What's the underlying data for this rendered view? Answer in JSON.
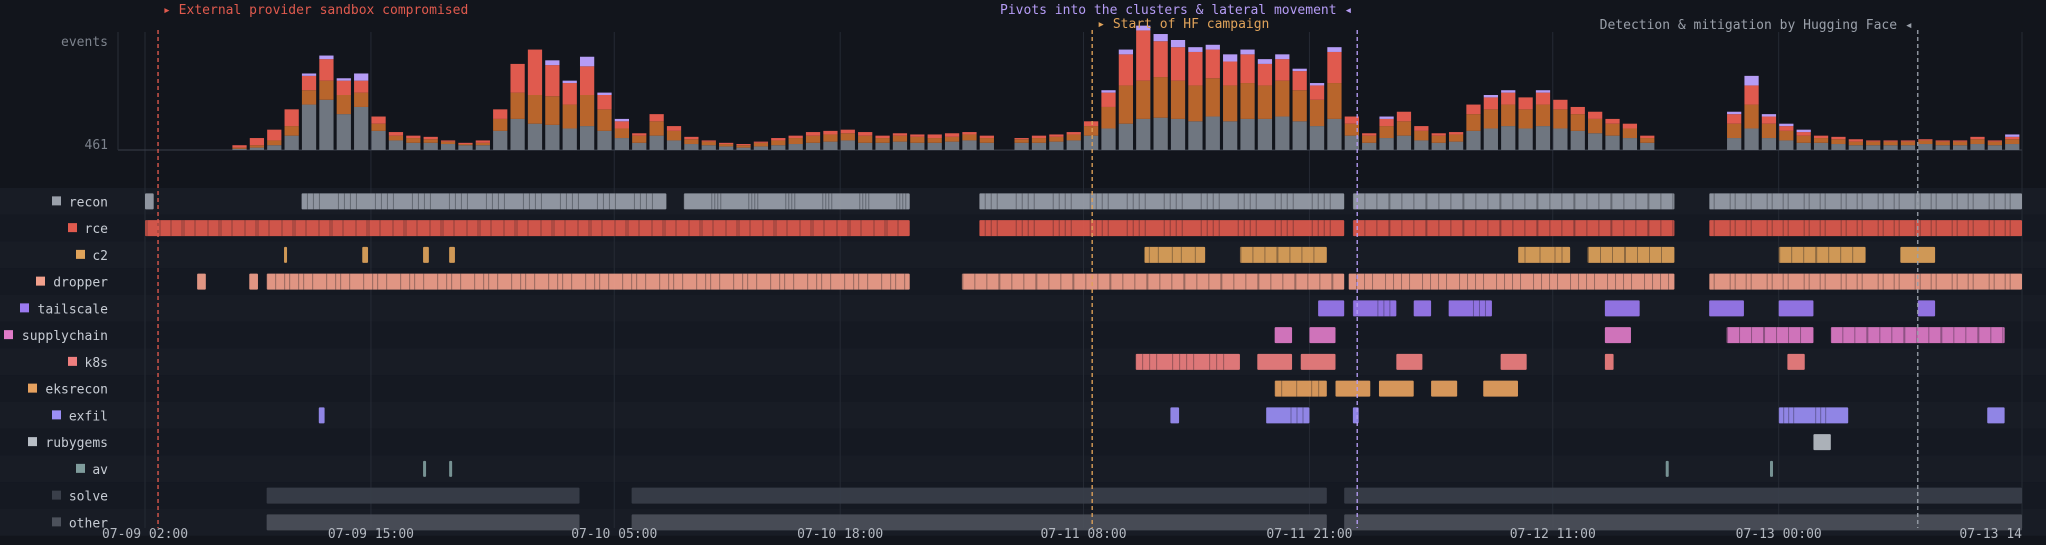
{
  "chart_data": {
    "type": "bar",
    "title": "",
    "xlabel": "",
    "ylabel": "events",
    "y_tick": "461",
    "ylim": [
      0,
      920
    ],
    "x_domain": [
      "2025-07-09 02:00",
      "2025-07-13 14:00"
    ],
    "x_tick_labels": [
      "07-09 02:00",
      "07-09 15:00",
      "07-10 05:00",
      "07-10 18:00",
      "07-11 08:00",
      "07-11 21:00",
      "07-12 11:00",
      "07-13 00:00",
      "07-13 14"
    ],
    "annotations": [
      {
        "name": "provider",
        "label": "▸ External provider sandbox compromised",
        "time": "07-09 02:45",
        "color": "#e05a4e",
        "align": "start"
      },
      {
        "name": "hf-start",
        "label": "▸ Start of HF campaign",
        "time": "07-11 08:30",
        "color": "#e0a35a",
        "align": "start"
      },
      {
        "name": "pivots",
        "label": "Pivots into the clusters & lateral movement ◂",
        "time": "07-11 23:45",
        "color": "#b59cf5",
        "align": "end"
      },
      {
        "name": "detection",
        "label": "Detection & mitigation by Hugging Face ◂",
        "time": "07-13 08:00",
        "color": "#9aa0aa",
        "align": "end"
      }
    ],
    "categories": [
      "recon",
      "rce",
      "c2",
      "dropper",
      "tailscale",
      "supplychain",
      "k8s",
      "eksrecon",
      "exfil",
      "rubygems",
      "av",
      "solve",
      "other"
    ],
    "category_colors": [
      "#9aa0aa",
      "#e05a4e",
      "#e0a35a",
      "#f2a08c",
      "#9b7af0",
      "#e07bc8",
      "#ef7f7f",
      "#e6a15f",
      "#9b8ef5",
      "#b8bec6",
      "#7f9c9c",
      "#3a3f4a",
      "#4c515b"
    ],
    "stack_colors": [
      "#6f7680",
      "#b8652c",
      "#e05a4e",
      "#b59cf5"
    ],
    "histogram": [
      [
        "07-09 02:00",
        0,
        0,
        0,
        0
      ],
      [
        "07-09 03:00",
        0,
        0,
        0,
        0
      ],
      [
        "07-09 04:00",
        0,
        0,
        0,
        0
      ],
      [
        "07-09 05:00",
        0,
        0,
        0,
        0
      ],
      [
        "07-09 06:00",
        0,
        0,
        0,
        0
      ],
      [
        "07-09 07:00",
        10,
        10,
        20,
        0
      ],
      [
        "07-09 08:00",
        20,
        20,
        60,
        0
      ],
      [
        "07-09 09:00",
        40,
        40,
        90,
        0
      ],
      [
        "07-09 10:00",
        120,
        80,
        140,
        0
      ],
      [
        "07-09 11:00",
        380,
        120,
        120,
        20
      ],
      [
        "07-09 12:00",
        420,
        160,
        180,
        30
      ],
      [
        "07-09 13:00",
        300,
        160,
        120,
        20
      ],
      [
        "07-09 14:00",
        360,
        120,
        100,
        60
      ],
      [
        "07-09 15:00",
        160,
        60,
        60,
        0
      ],
      [
        "07-09 16:00",
        80,
        40,
        30,
        0
      ],
      [
        "07-09 17:00",
        60,
        40,
        20,
        0
      ],
      [
        "07-09 18:00",
        60,
        30,
        20,
        0
      ],
      [
        "07-09 19:00",
        50,
        20,
        10,
        0
      ],
      [
        "07-09 20:00",
        40,
        10,
        10,
        0
      ],
      [
        "07-09 21:00",
        40,
        20,
        20,
        0
      ],
      [
        "07-09 22:00",
        160,
        100,
        80,
        0
      ],
      [
        "07-09 23:00",
        260,
        220,
        240,
        0
      ],
      [
        "07-10 00:00",
        220,
        240,
        380,
        0
      ],
      [
        "07-10 01:00",
        210,
        240,
        260,
        40
      ],
      [
        "07-10 02:00",
        180,
        200,
        180,
        20
      ],
      [
        "07-10 03:00",
        200,
        260,
        240,
        80
      ],
      [
        "07-10 04:00",
        160,
        180,
        120,
        20
      ],
      [
        "07-10 05:00",
        100,
        80,
        60,
        20
      ],
      [
        "07-10 06:00",
        60,
        60,
        20,
        0
      ],
      [
        "07-10 07:00",
        120,
        120,
        60,
        0
      ],
      [
        "07-10 08:00",
        80,
        80,
        40,
        0
      ],
      [
        "07-10 09:00",
        50,
        40,
        20,
        0
      ],
      [
        "07-10 10:00",
        40,
        30,
        10,
        0
      ],
      [
        "07-10 11:00",
        30,
        20,
        10,
        0
      ],
      [
        "07-10 12:00",
        20,
        20,
        10,
        0
      ],
      [
        "07-10 13:00",
        30,
        30,
        10,
        0
      ],
      [
        "07-10 14:00",
        40,
        40,
        20,
        0
      ],
      [
        "07-10 15:00",
        50,
        50,
        20,
        0
      ],
      [
        "07-10 16:00",
        60,
        60,
        30,
        0
      ],
      [
        "07-10 17:00",
        70,
        60,
        30,
        0
      ],
      [
        "07-10 18:00",
        80,
        60,
        30,
        0
      ],
      [
        "07-10 19:00",
        60,
        60,
        30,
        0
      ],
      [
        "07-10 20:00",
        60,
        40,
        20,
        0
      ],
      [
        "07-10 21:00",
        70,
        50,
        20,
        0
      ],
      [
        "07-10 22:00",
        60,
        50,
        20,
        0
      ],
      [
        "07-10 23:00",
        60,
        40,
        30,
        0
      ],
      [
        "07-11 00:00",
        70,
        40,
        30,
        0
      ],
      [
        "07-11 01:00",
        80,
        50,
        20,
        0
      ],
      [
        "07-11 02:00",
        60,
        40,
        20,
        0
      ],
      [
        "07-11 03:00",
        0,
        0,
        0,
        0
      ],
      [
        "07-11 04:00",
        60,
        30,
        10,
        0
      ],
      [
        "07-11 05:00",
        60,
        40,
        20,
        0
      ],
      [
        "07-11 06:00",
        70,
        40,
        20,
        0
      ],
      [
        "07-11 07:00",
        80,
        50,
        20,
        0
      ],
      [
        "07-11 08:00",
        120,
        80,
        40,
        0
      ],
      [
        "07-11 09:00",
        180,
        180,
        120,
        20
      ],
      [
        "07-11 10:00",
        220,
        320,
        260,
        40
      ],
      [
        "07-11 11:00",
        260,
        320,
        420,
        40
      ],
      [
        "07-11 12:00",
        270,
        340,
        300,
        60
      ],
      [
        "07-11 13:00",
        260,
        320,
        280,
        60
      ],
      [
        "07-11 14:00",
        240,
        300,
        280,
        40
      ],
      [
        "07-11 15:00",
        280,
        320,
        240,
        40
      ],
      [
        "07-11 16:00",
        240,
        300,
        200,
        60
      ],
      [
        "07-11 17:00",
        260,
        300,
        240,
        40
      ],
      [
        "07-11 18:00",
        260,
        280,
        180,
        40
      ],
      [
        "07-11 19:00",
        280,
        300,
        180,
        40
      ],
      [
        "07-11 20:00",
        240,
        260,
        160,
        20
      ],
      [
        "07-11 21:00",
        200,
        220,
        120,
        20
      ],
      [
        "07-11 22:00",
        260,
        300,
        260,
        40
      ],
      [
        "07-11 23:00",
        120,
        100,
        60,
        0
      ],
      [
        "07-12 00:00",
        60,
        60,
        20,
        0
      ],
      [
        "07-12 01:00",
        100,
        100,
        60,
        20
      ],
      [
        "07-12 02:00",
        120,
        120,
        80,
        0
      ],
      [
        "07-12 03:00",
        80,
        80,
        40,
        0
      ],
      [
        "07-12 04:00",
        60,
        60,
        20,
        0
      ],
      [
        "07-12 05:00",
        70,
        60,
        20,
        0
      ],
      [
        "07-12 06:00",
        160,
        140,
        80,
        0
      ],
      [
        "07-12 07:00",
        180,
        160,
        100,
        20
      ],
      [
        "07-12 08:00",
        200,
        180,
        100,
        20
      ],
      [
        "07-12 09:00",
        180,
        160,
        100,
        0
      ],
      [
        "07-12 10:00",
        200,
        180,
        100,
        20
      ],
      [
        "07-12 11:00",
        180,
        160,
        80,
        0
      ],
      [
        "07-12 12:00",
        160,
        140,
        60,
        0
      ],
      [
        "07-12 13:00",
        140,
        120,
        60,
        0
      ],
      [
        "07-12 14:00",
        120,
        100,
        40,
        0
      ],
      [
        "07-12 15:00",
        100,
        80,
        40,
        0
      ],
      [
        "07-12 16:00",
        60,
        40,
        20,
        0
      ],
      [
        "07-12 17:00",
        0,
        0,
        0,
        0
      ],
      [
        "07-12 18:00",
        0,
        0,
        0,
        0
      ],
      [
        "07-12 19:00",
        0,
        0,
        0,
        0
      ],
      [
        "07-12 20:00",
        0,
        0,
        0,
        0
      ],
      [
        "07-12 21:00",
        100,
        120,
        80,
        20
      ],
      [
        "07-12 22:00",
        180,
        200,
        160,
        80
      ],
      [
        "07-12 23:00",
        100,
        120,
        60,
        20
      ],
      [
        "07-13 00:00",
        80,
        80,
        40,
        20
      ],
      [
        "07-13 01:00",
        60,
        60,
        30,
        20
      ],
      [
        "07-13 02:00",
        60,
        40,
        20,
        0
      ],
      [
        "07-13 03:00",
        50,
        40,
        20,
        0
      ],
      [
        "07-13 04:00",
        40,
        30,
        20,
        0
      ],
      [
        "07-13 05:00",
        40,
        30,
        10,
        0
      ],
      [
        "07-13 06:00",
        40,
        30,
        10,
        0
      ],
      [
        "07-13 07:00",
        40,
        30,
        10,
        0
      ],
      [
        "07-13 08:00",
        50,
        30,
        10,
        0
      ],
      [
        "07-13 09:00",
        40,
        30,
        10,
        0
      ],
      [
        "07-13 10:00",
        40,
        30,
        10,
        0
      ],
      [
        "07-13 11:00",
        50,
        40,
        20,
        0
      ],
      [
        "07-13 12:00",
        40,
        30,
        10,
        0
      ],
      [
        "07-13 13:00",
        50,
        40,
        20,
        20
      ]
    ],
    "activity": {
      "recon": [
        [
          "07-09 02:00",
          "07-09 02:30"
        ],
        [
          "07-09 11:00",
          "07-10 08:00"
        ],
        [
          "07-10 09:00",
          "07-10 22:00"
        ],
        [
          "07-11 02:00",
          "07-11 23:00"
        ],
        [
          "07-11 23:30",
          "07-12 18:00"
        ],
        [
          "07-12 20:00",
          "07-13 14:00"
        ]
      ],
      "rce": [
        [
          "07-09 02:00",
          "07-10 22:00"
        ],
        [
          "07-11 02:00",
          "07-11 23:00"
        ],
        [
          "07-11 23:30",
          "07-12 18:00"
        ],
        [
          "07-12 20:00",
          "07-13 14:00"
        ]
      ],
      "c2": [
        [
          "07-09 10:00",
          "07-09 10:10"
        ],
        [
          "07-09 14:30",
          "07-09 14:50"
        ],
        [
          "07-09 18:00",
          "07-09 18:20"
        ],
        [
          "07-09 19:30",
          "07-09 19:50"
        ],
        [
          "07-11 11:30",
          "07-11 15:00"
        ],
        [
          "07-11 17:00",
          "07-11 22:00"
        ],
        [
          "07-12 09:00",
          "07-12 12:00"
        ],
        [
          "07-12 13:00",
          "07-12 18:00"
        ],
        [
          "07-13 00:00",
          "07-13 05:00"
        ],
        [
          "07-13 07:00",
          "07-13 09:00"
        ]
      ],
      "dropper": [
        [
          "07-09 05:00",
          "07-09 05:30"
        ],
        [
          "07-09 08:00",
          "07-09 08:30"
        ],
        [
          "07-09 09:00",
          "07-10 22:00"
        ],
        [
          "07-11 01:00",
          "07-11 23:00"
        ],
        [
          "07-11 23:15",
          "07-12 18:00"
        ],
        [
          "07-12 20:00",
          "07-13 14:00"
        ]
      ],
      "tailscale": [
        [
          "07-11 21:30",
          "07-11 23:00"
        ],
        [
          "07-11 23:30",
          "07-12 02:00"
        ],
        [
          "07-12 03:00",
          "07-12 04:00"
        ],
        [
          "07-12 05:00",
          "07-12 07:30"
        ],
        [
          "07-12 14:00",
          "07-12 16:00"
        ],
        [
          "07-12 20:00",
          "07-12 22:00"
        ],
        [
          "07-13 00:00",
          "07-13 02:00"
        ],
        [
          "07-13 08:00",
          "07-13 09:00"
        ]
      ],
      "supplychain": [
        [
          "07-11 19:00",
          "07-11 20:00"
        ],
        [
          "07-11 21:00",
          "07-11 22:30"
        ],
        [
          "07-12 14:00",
          "07-12 15:30"
        ],
        [
          "07-12 21:00",
          "07-13 02:00"
        ],
        [
          "07-13 03:00",
          "07-13 13:00"
        ]
      ],
      "k8s": [
        [
          "07-11 11:00",
          "07-11 17:00"
        ],
        [
          "07-11 18:00",
          "07-11 20:00"
        ],
        [
          "07-11 20:30",
          "07-11 22:30"
        ],
        [
          "07-12 02:00",
          "07-12 03:30"
        ],
        [
          "07-12 08:00",
          "07-12 09:30"
        ],
        [
          "07-12 14:00",
          "07-12 14:30"
        ],
        [
          "07-13 00:30",
          "07-13 01:30"
        ]
      ],
      "eksrecon": [
        [
          "07-11 19:00",
          "07-11 22:00"
        ],
        [
          "07-11 22:30",
          "07-12 00:30"
        ],
        [
          "07-12 01:00",
          "07-12 03:00"
        ],
        [
          "07-12 04:00",
          "07-12 05:30"
        ],
        [
          "07-12 07:00",
          "07-12 09:00"
        ]
      ],
      "exfil": [
        [
          "07-09 12:00",
          "07-09 12:20"
        ],
        [
          "07-11 13:00",
          "07-11 13:30"
        ],
        [
          "07-11 18:30",
          "07-11 21:00"
        ],
        [
          "07-11 23:30",
          "07-11 23:50"
        ],
        [
          "07-13 00:00",
          "07-13 04:00"
        ],
        [
          "07-13 12:00",
          "07-13 13:00"
        ]
      ],
      "rubygems": [
        [
          "07-13 02:00",
          "07-13 03:00"
        ]
      ],
      "av": [
        [
          "07-09 18:00",
          "07-09 18:10"
        ],
        [
          "07-09 19:30",
          "07-09 19:40"
        ],
        [
          "07-12 17:30",
          "07-12 17:40"
        ],
        [
          "07-12 23:30",
          "07-12 23:40"
        ]
      ],
      "solve": [
        [
          "07-09 09:00",
          "07-10 03:00"
        ],
        [
          "07-10 06:00",
          "07-11 22:00"
        ],
        [
          "07-11 23:00",
          "07-13 14:00"
        ]
      ],
      "other": [
        [
          "07-09 09:00",
          "07-10 03:00"
        ],
        [
          "07-10 06:00",
          "07-11 22:00"
        ],
        [
          "07-11 23:00",
          "07-13 14:00"
        ]
      ]
    }
  }
}
